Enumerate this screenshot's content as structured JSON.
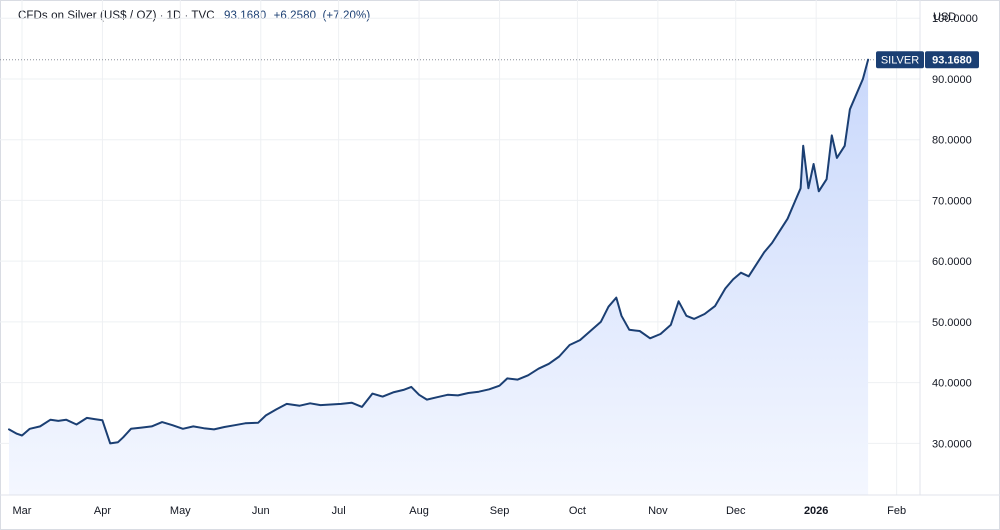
{
  "header": {
    "symbol": "CFDs on Silver (US$ / OZ)",
    "interval": "1D",
    "source": "TVC",
    "separator": "·",
    "last": "93.1680",
    "change": "+6.2580",
    "change_pct": "(+7.20%)"
  },
  "currency": "USD",
  "price_tag": {
    "symbol": "SILVER",
    "value": "93.1680"
  },
  "colors": {
    "line": "#1b3f73",
    "fill_top": "#c9d8fb",
    "fill_bottom": "#f4f7ff",
    "grid": "#eef0f3",
    "tag_bg": "#1b3f73"
  },
  "chart_data": {
    "type": "area",
    "ylim": [
      21.5,
      103
    ],
    "yticks": [
      30,
      40,
      50,
      60,
      70,
      80,
      90,
      100
    ],
    "ytick_labels": [
      "30.0000",
      "40.0000",
      "50.0000",
      "60.0000",
      "70.0000",
      "80.0000",
      "90.0000",
      "100.0000"
    ],
    "x_range": [
      "2025-02-24",
      "2026-02-10"
    ],
    "x_ticks": [
      {
        "date": "2025-03-01",
        "label": "Mar",
        "bold": false
      },
      {
        "date": "2025-04-01",
        "label": "Apr",
        "bold": false
      },
      {
        "date": "2025-05-01",
        "label": "May",
        "bold": false
      },
      {
        "date": "2025-06-01",
        "label": "Jun",
        "bold": false
      },
      {
        "date": "2025-07-01",
        "label": "Jul",
        "bold": false
      },
      {
        "date": "2025-08-01",
        "label": "Aug",
        "bold": false
      },
      {
        "date": "2025-09-01",
        "label": "Sep",
        "bold": false
      },
      {
        "date": "2025-10-01",
        "label": "Oct",
        "bold": false
      },
      {
        "date": "2025-11-01",
        "label": "Nov",
        "bold": false
      },
      {
        "date": "2025-12-01",
        "label": "Dec",
        "bold": false
      },
      {
        "date": "2026-01-01",
        "label": "2026",
        "bold": true
      },
      {
        "date": "2026-02-01",
        "label": "Feb",
        "bold": false
      }
    ],
    "series": [
      {
        "x": [
          "2025-02-24",
          "2025-02-27",
          "2025-03-01",
          "2025-03-04",
          "2025-03-08",
          "2025-03-12",
          "2025-03-15",
          "2025-03-18",
          "2025-03-22",
          "2025-03-26",
          "2025-03-29",
          "2025-04-01",
          "2025-04-04",
          "2025-04-07",
          "2025-04-09",
          "2025-04-12",
          "2025-04-16",
          "2025-04-20",
          "2025-04-24",
          "2025-04-28",
          "2025-05-02",
          "2025-05-06",
          "2025-05-10",
          "2025-05-14",
          "2025-05-18",
          "2025-05-22",
          "2025-05-26",
          "2025-05-31",
          "2025-06-03",
          "2025-06-07",
          "2025-06-11",
          "2025-06-16",
          "2025-06-20",
          "2025-06-24",
          "2025-06-28",
          "2025-07-02",
          "2025-07-06",
          "2025-07-10",
          "2025-07-14",
          "2025-07-18",
          "2025-07-22",
          "2025-07-26",
          "2025-07-29",
          "2025-08-01",
          "2025-08-04",
          "2025-08-08",
          "2025-08-12",
          "2025-08-16",
          "2025-08-20",
          "2025-08-24",
          "2025-08-28",
          "2025-09-01",
          "2025-09-04",
          "2025-09-08",
          "2025-09-12",
          "2025-09-16",
          "2025-09-20",
          "2025-09-24",
          "2025-09-28",
          "2025-10-02",
          "2025-10-06",
          "2025-10-10",
          "2025-10-13",
          "2025-10-16",
          "2025-10-18",
          "2025-10-21",
          "2025-10-25",
          "2025-10-29",
          "2025-11-02",
          "2025-11-06",
          "2025-11-09",
          "2025-11-12",
          "2025-11-15",
          "2025-11-19",
          "2025-11-23",
          "2025-11-27",
          "2025-11-30",
          "2025-12-03",
          "2025-12-06",
          "2025-12-09",
          "2025-12-12",
          "2025-12-15",
          "2025-12-18",
          "2025-12-21",
          "2025-12-24",
          "2025-12-26",
          "2025-12-27",
          "2025-12-29",
          "2025-12-31",
          "2026-01-02",
          "2026-01-05",
          "2026-01-07",
          "2026-01-09",
          "2026-01-12",
          "2026-01-14",
          "2026-01-16",
          "2026-01-19",
          "2026-01-21"
        ],
        "values": [
          32.3,
          31.6,
          31.3,
          32.4,
          32.8,
          33.9,
          33.7,
          33.9,
          33.1,
          34.2,
          34.0,
          33.8,
          30.0,
          30.2,
          31.0,
          32.4,
          32.6,
          32.8,
          33.5,
          33.0,
          32.4,
          32.8,
          32.5,
          32.3,
          32.7,
          33.0,
          33.3,
          33.4,
          34.6,
          35.6,
          36.5,
          36.2,
          36.6,
          36.3,
          36.4,
          36.5,
          36.7,
          36.0,
          38.2,
          37.7,
          38.4,
          38.8,
          39.3,
          38.0,
          37.2,
          37.6,
          38.0,
          37.9,
          38.3,
          38.5,
          38.9,
          39.5,
          40.7,
          40.5,
          41.2,
          42.3,
          43.1,
          44.3,
          46.2,
          47.0,
          48.5,
          50.0,
          52.5,
          54.0,
          51.0,
          48.7,
          48.5,
          47.3,
          48.0,
          49.5,
          53.4,
          51.0,
          50.5,
          51.3,
          52.6,
          55.5,
          57.0,
          58.1,
          57.5,
          59.5,
          61.5,
          63.0,
          65.0,
          67.0,
          70.0,
          72.0,
          79.0,
          72.0,
          76.0,
          71.5,
          73.5,
          80.7,
          77.0,
          79.0,
          85.0,
          87.0,
          90.0,
          93.168
        ]
      }
    ]
  }
}
